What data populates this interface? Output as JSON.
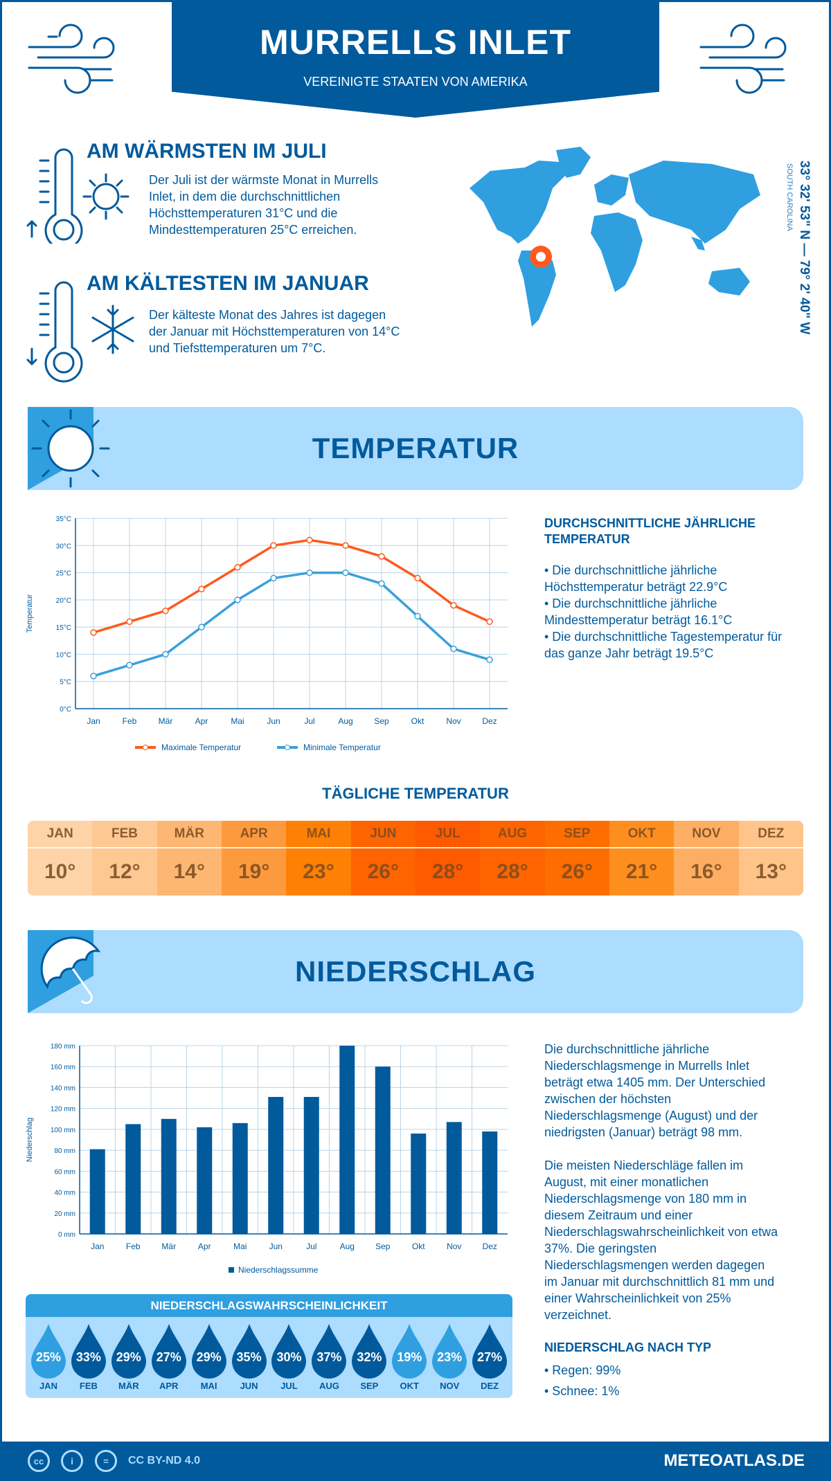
{
  "header": {
    "title": "MURRELLS INLET",
    "subtitle": "VEREINIGTE STAATEN VON AMERIKA"
  },
  "warmest": {
    "title": "AM WÄRMSTEN IM JULI",
    "text": "Der Juli ist der wärmste Monat in Murrells Inlet, in dem die durchschnittlichen Höchsttemperaturen 31°C und die Mindesttemperaturen 25°C erreichen."
  },
  "coldest": {
    "title": "AM KÄLTESTEN IM JANUAR",
    "text": "Der kälteste Monat des Jahres ist dagegen der Januar mit Höchsttemperaturen von 14°C und Tiefsttemperaturen um 7°C."
  },
  "location": {
    "coords": "33° 32' 53\" N — 79° 2' 40\" W",
    "region": "SOUTH CAROLINA"
  },
  "temperature_section": {
    "title": "TEMPERATUR",
    "annual_title": "DURCHSCHNITTLICHE JÄHRLICHE TEMPERATUR",
    "bullets": [
      "• Die durchschnittliche jährliche Höchsttemperatur beträgt 22.9°C",
      "• Die durchschnittliche jährliche Mindesttemperatur beträgt 16.1°C",
      "• Die durchschnittliche Tagestemperatur für das ganze Jahr beträgt 19.5°C"
    ]
  },
  "daily": {
    "title": "TÄGLICHE TEMPERATUR",
    "months": [
      "JAN",
      "FEB",
      "MÄR",
      "APR",
      "MAI",
      "JUN",
      "JUL",
      "AUG",
      "SEP",
      "OKT",
      "NOV",
      "DEZ"
    ],
    "values": [
      "10°",
      "12°",
      "14°",
      "19°",
      "23°",
      "26°",
      "28°",
      "28°",
      "26°",
      "21°",
      "16°",
      "13°"
    ],
    "colors": [
      "#fed3a8",
      "#fec892",
      "#feb772",
      "#fe9a3e",
      "#fe8004",
      "#fe6400",
      "#fe5a00",
      "#fe6400",
      "#fe6d00",
      "#fe8f1e",
      "#feae62",
      "#fec48a"
    ]
  },
  "precip_section": {
    "title": "NIEDERSCHLAG",
    "paragraphs": [
      "Die durchschnittliche jährliche Niederschlagsmenge in Murrells Inlet beträgt etwa 1405 mm. Der Unterschied zwischen der höchsten Niederschlagsmenge (August) und der niedrigsten (Januar) beträgt 98 mm.",
      "Die meisten Niederschläge fallen im August, mit einer monatlichen Niederschlagsmenge von 180 mm in diesem Zeitraum und einer Niederschlagswahrscheinlichkeit von etwa 37%. Die geringsten Niederschlagsmengen werden dagegen im Januar mit durchschnittlich 81 mm und einer Wahrscheinlichkeit von 25% verzeichnet."
    ],
    "type_title": "NIEDERSCHLAG NACH TYP",
    "types": [
      "• Regen: 99%",
      "• Schnee: 1%"
    ]
  },
  "probability": {
    "title": "NIEDERSCHLAGSWAHRSCHEINLICHKEIT",
    "months": [
      "JAN",
      "FEB",
      "MÄR",
      "APR",
      "MAI",
      "JUN",
      "JUL",
      "AUG",
      "SEP",
      "OKT",
      "NOV",
      "DEZ"
    ],
    "values": [
      "25%",
      "33%",
      "29%",
      "27%",
      "29%",
      "35%",
      "30%",
      "37%",
      "32%",
      "19%",
      "23%",
      "27%"
    ],
    "colors": [
      "#2f9fe0",
      "#005a9c",
      "#005a9c",
      "#005a9c",
      "#005a9c",
      "#005a9c",
      "#005a9c",
      "#005a9c",
      "#005a9c",
      "#2f9fe0",
      "#2f9fe0",
      "#005a9c"
    ]
  },
  "footer": {
    "license": "CC BY-ND 4.0",
    "brand": "METEOATLAS.DE"
  },
  "chart_data": [
    {
      "type": "line",
      "ylabel": "Temperatur",
      "ylim": [
        0,
        35
      ],
      "yticks": [
        "0°C",
        "5°C",
        "10°C",
        "15°C",
        "20°C",
        "25°C",
        "30°C",
        "35°C"
      ],
      "categories": [
        "Jan",
        "Feb",
        "Mär",
        "Apr",
        "Mai",
        "Jun",
        "Jul",
        "Aug",
        "Sep",
        "Okt",
        "Nov",
        "Dez"
      ],
      "grid": true,
      "legend": "bottom",
      "series": [
        {
          "name": "Maximale Temperatur",
          "color": "#fe5a1e",
          "values": [
            14,
            16,
            18,
            22,
            26,
            30,
            31,
            30,
            28,
            24,
            19,
            16
          ]
        },
        {
          "name": "Minimale Temperatur",
          "color": "#3aa0dc",
          "values": [
            6,
            8,
            10,
            15,
            20,
            24,
            25,
            25,
            23,
            17,
            11,
            9
          ]
        }
      ]
    },
    {
      "type": "bar",
      "ylabel": "Niederschlag",
      "ylim": [
        0,
        180
      ],
      "yticks": [
        "0 mm",
        "20 mm",
        "40 mm",
        "60 mm",
        "80 mm",
        "100 mm",
        "120 mm",
        "140 mm",
        "160 mm",
        "180 mm"
      ],
      "categories": [
        "Jan",
        "Feb",
        "Mär",
        "Apr",
        "Mai",
        "Jun",
        "Jul",
        "Aug",
        "Sep",
        "Okt",
        "Nov",
        "Dez"
      ],
      "grid": true,
      "legend": "bottom",
      "series": [
        {
          "name": "Niederschlagssumme",
          "color": "#005a9c",
          "values": [
            81,
            105,
            110,
            102,
            106,
            131,
            131,
            180,
            160,
            96,
            107,
            98
          ]
        }
      ]
    }
  ]
}
